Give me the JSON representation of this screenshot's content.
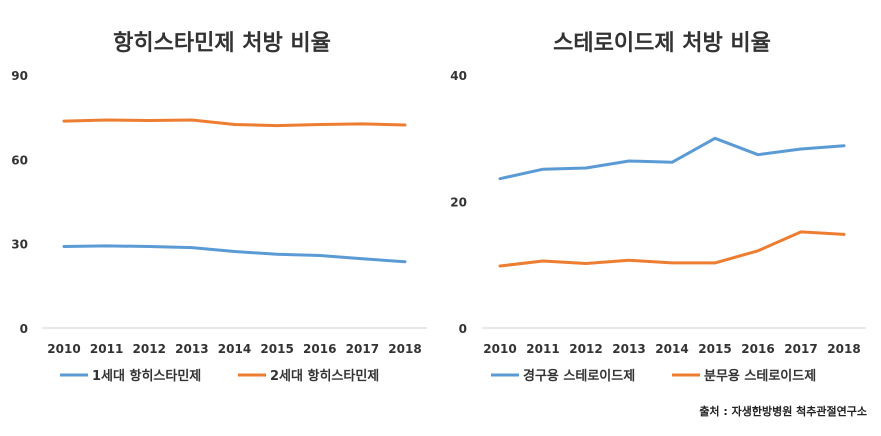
{
  "chart_data": [
    {
      "type": "line",
      "title": "항히스타민제 처방 비율",
      "categories": [
        "2010",
        "2011",
        "2012",
        "2013",
        "2014",
        "2015",
        "2016",
        "2017",
        "2018"
      ],
      "ylim": [
        0,
        90
      ],
      "yticks": [
        "0",
        "30",
        "60",
        "90"
      ],
      "grid": false,
      "legend_position": "bottom-left",
      "series": [
        {
          "name": "1세대 항히스타민제",
          "color": "#5B9BD5",
          "values": [
            29.0,
            29.2,
            29.0,
            28.6,
            27.2,
            26.2,
            25.8,
            24.6,
            23.6
          ]
        },
        {
          "name": "2세대 항히스타민제",
          "color": "#ED7D31",
          "values": [
            73.6,
            74.0,
            73.8,
            74.0,
            72.4,
            72.0,
            72.4,
            72.6,
            72.2
          ]
        }
      ]
    },
    {
      "type": "line",
      "title": "스테로이드제 처방 비율",
      "categories": [
        "2010",
        "2011",
        "2012",
        "2013",
        "2014",
        "2015",
        "2016",
        "2017",
        "2018"
      ],
      "ylim": [
        0,
        40
      ],
      "yticks": [
        "0",
        "20",
        "40"
      ],
      "grid": false,
      "legend_position": "bottom-left",
      "series": [
        {
          "name": "경구용 스테로이드제",
          "color": "#5B9BD5",
          "values": [
            23.6,
            25.1,
            25.3,
            26.4,
            26.2,
            30.0,
            27.4,
            28.3,
            28.8
          ]
        },
        {
          "name": "분무용 스테로이드제",
          "color": "#ED7D31",
          "values": [
            9.8,
            10.6,
            10.2,
            10.7,
            10.3,
            10.3,
            12.2,
            15.2,
            14.8
          ]
        }
      ]
    }
  ],
  "source": "출처 : 자생한방병원 척추관절연구소"
}
